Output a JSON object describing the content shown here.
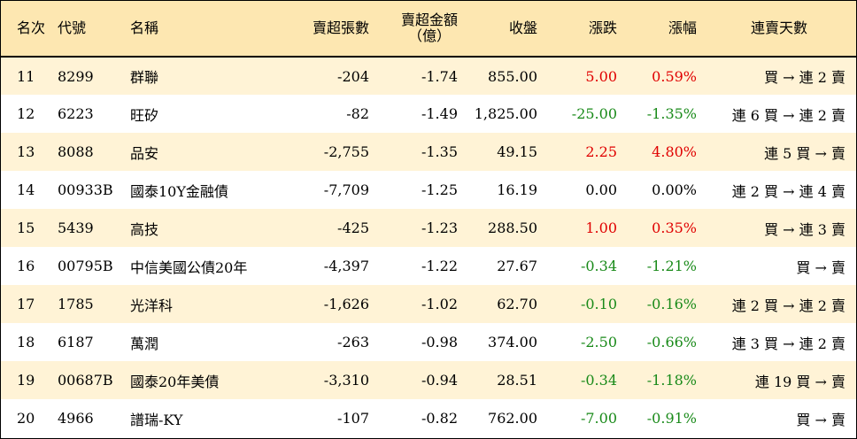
{
  "header": {
    "rank": "名次",
    "code": "代號",
    "name": "名稱",
    "net_sell_shares": "賣超張數",
    "net_sell_amount": "賣超金額",
    "net_sell_amount_unit": "（億）",
    "close": "收盤",
    "change": "漲跌",
    "change_pct": "漲幅",
    "streak": "連賣天數"
  },
  "colors": {
    "header_bg": "#fde7b1",
    "odd_row_bg": "#fff3d6",
    "up": "#e00000",
    "down": "#198a19"
  },
  "rows": [
    {
      "rank": "11",
      "code": "8299",
      "name": "群聯",
      "shares": "-204",
      "amount": "-1.74",
      "close": "855.00",
      "change": "5.00",
      "pct": "0.59%",
      "dir": "up",
      "streak": "買 → 連 2 賣"
    },
    {
      "rank": "12",
      "code": "6223",
      "name": "旺矽",
      "shares": "-82",
      "amount": "-1.49",
      "close": "1,825.00",
      "change": "-25.00",
      "pct": "-1.35%",
      "dir": "down",
      "streak": "連 6 買 → 連 2 賣"
    },
    {
      "rank": "13",
      "code": "8088",
      "name": "品安",
      "shares": "-2,755",
      "amount": "-1.35",
      "close": "49.15",
      "change": "2.25",
      "pct": "4.80%",
      "dir": "up",
      "streak": "連 5 買 → 賣"
    },
    {
      "rank": "14",
      "code": "00933B",
      "name": "國泰10Y金融債",
      "shares": "-7,709",
      "amount": "-1.25",
      "close": "16.19",
      "change": "0.00",
      "pct": "0.00%",
      "dir": "flat",
      "streak": "連 2 買 → 連 4 賣"
    },
    {
      "rank": "15",
      "code": "5439",
      "name": "高技",
      "shares": "-425",
      "amount": "-1.23",
      "close": "288.50",
      "change": "1.00",
      "pct": "0.35%",
      "dir": "up",
      "streak": "買 → 連 3 賣"
    },
    {
      "rank": "16",
      "code": "00795B",
      "name": "中信美國公債20年",
      "shares": "-4,397",
      "amount": "-1.22",
      "close": "27.67",
      "change": "-0.34",
      "pct": "-1.21%",
      "dir": "down",
      "streak": "買 → 賣"
    },
    {
      "rank": "17",
      "code": "1785",
      "name": "光洋科",
      "shares": "-1,626",
      "amount": "-1.02",
      "close": "62.70",
      "change": "-0.10",
      "pct": "-0.16%",
      "dir": "down",
      "streak": "連 2 買 → 連 2 賣"
    },
    {
      "rank": "18",
      "code": "6187",
      "name": "萬潤",
      "shares": "-263",
      "amount": "-0.98",
      "close": "374.00",
      "change": "-2.50",
      "pct": "-0.66%",
      "dir": "down",
      "streak": "連 3 買 → 連 2 賣"
    },
    {
      "rank": "19",
      "code": "00687B",
      "name": "國泰20年美債",
      "shares": "-3,310",
      "amount": "-0.94",
      "close": "28.51",
      "change": "-0.34",
      "pct": "-1.18%",
      "dir": "down",
      "streak": "連 19 買 → 賣"
    },
    {
      "rank": "20",
      "code": "4966",
      "name": "譜瑞-KY",
      "shares": "-107",
      "amount": "-0.82",
      "close": "762.00",
      "change": "-7.00",
      "pct": "-0.91%",
      "dir": "down",
      "streak": "買 → 賣"
    }
  ]
}
